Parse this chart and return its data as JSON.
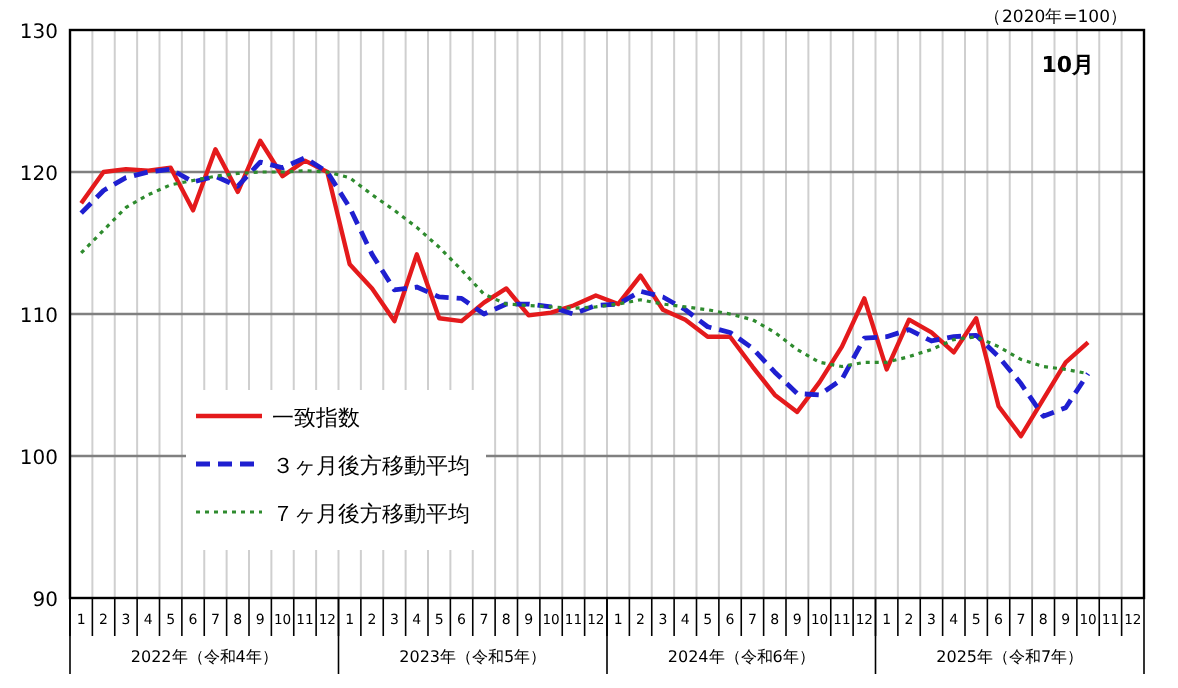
{
  "chart_data": {
    "type": "line",
    "categories": [
      "1",
      "2",
      "3",
      "4",
      "5",
      "6",
      "7",
      "8",
      "9",
      "10",
      "11",
      "12",
      "1",
      "2",
      "3",
      "4",
      "5",
      "6",
      "7",
      "8",
      "9",
      "10",
      "11",
      "12",
      "1",
      "2",
      "3",
      "4",
      "5",
      "6",
      "7",
      "8",
      "9",
      "10",
      "11",
      "12",
      "1",
      "2",
      "3",
      "4",
      "5",
      "6",
      "7",
      "8",
      "9",
      "10",
      "11",
      "12"
    ],
    "ylim": [
      90,
      130
    ],
    "yticks": [
      90,
      100,
      110,
      120,
      130
    ],
    "grid": true,
    "legend": "bottom left",
    "series": [
      {
        "name": "一致指数",
        "color": "#e41a1c",
        "line_style": "solid",
        "values": [
          117.8,
          120.0,
          120.2,
          120.1,
          120.3,
          117.3,
          121.6,
          118.6,
          122.2,
          119.7,
          120.8,
          120.0,
          113.5,
          111.8,
          109.5,
          114.2,
          109.7,
          109.5,
          110.8,
          111.8,
          109.9,
          110.1,
          110.6,
          111.3,
          110.7,
          112.7,
          110.3,
          109.6,
          108.4,
          108.4,
          106.3,
          104.3,
          103.1,
          105.2,
          107.7,
          111.1,
          106.1,
          109.6,
          108.7,
          107.3,
          109.7,
          103.5,
          101.4,
          104.0,
          106.6,
          108.0,
          null,
          null
        ]
      },
      {
        "name": "３ヶ月後方移動平均",
        "color": "#1f1fd0",
        "line_style": "dashed",
        "values": [
          117.1,
          118.7,
          119.6,
          120.0,
          120.2,
          119.3,
          119.7,
          119.0,
          120.7,
          120.3,
          121.0,
          120.0,
          117.5,
          114.2,
          111.7,
          111.9,
          111.2,
          111.1,
          110.0,
          110.7,
          110.7,
          110.5,
          110.0,
          110.6,
          110.7,
          111.6,
          111.2,
          110.3,
          109.1,
          108.7,
          107.6,
          105.9,
          104.4,
          104.3,
          105.4,
          108.3,
          108.4,
          108.9,
          108.1,
          108.4,
          108.5,
          107.0,
          105.1,
          102.8,
          103.4,
          105.8,
          null,
          null
        ]
      },
      {
        "name": "７ヶ月後方移動平均",
        "color": "#2e8b2e",
        "line_style": "dotted",
        "values": [
          114.3,
          115.9,
          117.5,
          118.4,
          119.1,
          119.4,
          119.7,
          119.9,
          120.0,
          120.0,
          120.1,
          120.0,
          119.6,
          118.4,
          117.3,
          116.1,
          114.7,
          113.1,
          111.4,
          110.7,
          110.6,
          110.5,
          110.4,
          110.5,
          110.7,
          111.0,
          110.7,
          110.5,
          110.3,
          110.0,
          109.6,
          108.7,
          107.5,
          106.6,
          106.3,
          106.6,
          106.6,
          107.0,
          107.5,
          108.2,
          108.4,
          107.7,
          106.8,
          106.3,
          106.1,
          105.8,
          null,
          null
        ]
      }
    ],
    "annotations": [
      "2022年（令和4年）",
      "2023年（令和5年）",
      "2024年（令和6年）",
      "2025年（令和7年）",
      "（2020年=100）",
      "10月"
    ]
  }
}
